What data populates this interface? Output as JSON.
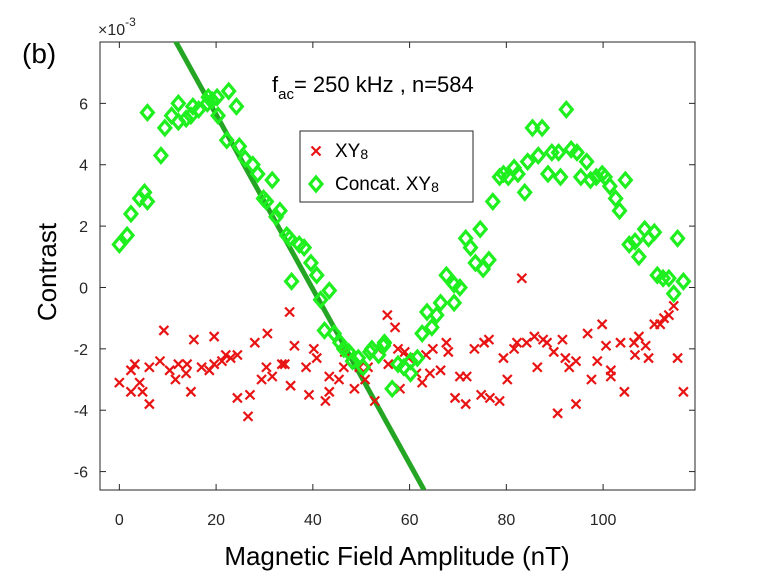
{
  "panel_label": "(b)",
  "chart_data": {
    "type": "scatter",
    "title": "",
    "xlabel": "Magnetic Field Amplitude (nT)",
    "ylabel": "Contrast",
    "y_multiplier": "×10",
    "y_multiplier_exp": "-3",
    "xlim": [
      -4,
      119
    ],
    "ylim": [
      -6.6,
      8.0
    ],
    "xticks": [
      0,
      20,
      40,
      60,
      80,
      100
    ],
    "yticks": [
      -6,
      -4,
      -2,
      0,
      2,
      4,
      6
    ],
    "annotation": {
      "f_base": "f",
      "f_sub": "ac",
      "f_rest": "= 250 kHz , n=584"
    },
    "legend": {
      "position": "top-center",
      "entries": [
        {
          "label": "XY",
          "label_sub": "8",
          "marker": "x",
          "color": "#e81414"
        },
        {
          "label": "Concat. XY",
          "label_sub": "8",
          "marker": "diamond",
          "color": "#1fef1f"
        }
      ]
    },
    "fit_line": {
      "color": "#24a624",
      "x": [
        11,
        63
      ],
      "y": [
        8.2,
        -6.6
      ]
    },
    "series": [
      {
        "name": "XY8",
        "marker": "x",
        "color": "#e81414",
        "x": [
          0,
          1,
          2,
          3,
          4,
          5,
          6,
          7,
          8,
          9,
          10,
          11,
          12,
          13,
          14,
          15,
          16,
          17,
          18,
          19,
          20,
          21,
          22,
          23,
          24,
          25,
          26,
          27,
          28,
          29,
          30,
          31,
          32,
          33,
          34,
          35,
          36,
          37,
          38,
          39,
          40,
          41,
          42,
          43,
          44,
          45,
          46,
          47,
          48,
          49,
          50,
          51,
          52,
          53,
          54,
          55,
          56,
          57,
          58,
          59,
          60,
          61,
          62,
          63,
          64,
          65,
          66,
          67,
          68,
          69,
          70,
          71,
          72,
          73,
          74,
          75,
          76,
          77,
          78,
          79,
          80,
          81,
          82,
          83,
          84,
          85,
          86,
          87,
          88,
          89,
          90,
          91,
          92,
          93,
          94,
          95,
          96,
          97,
          98,
          99,
          100,
          101,
          102,
          103,
          104,
          105,
          106,
          107,
          108,
          109,
          110,
          111,
          112,
          113,
          114,
          115,
          116
        ],
        "values": [
          -3.1,
          -3.4,
          -2.7,
          -2.5,
          -3.1,
          -3.8,
          -3.4,
          -2.6,
          -1.4,
          -2.4,
          -2.7,
          -2.5,
          -3.0,
          -2.8,
          -2.5,
          -1.7,
          -3.4,
          -2.6,
          -2.7,
          -1.6,
          -2.5,
          -2.4,
          -2.2,
          -2.3,
          -3.6,
          -2.2,
          -4.2,
          -3.5,
          -1.8,
          -3.0,
          -1.5,
          -2.6,
          -2.9,
          -2.5,
          -2.5,
          -0.8,
          -3.2,
          -1.9,
          -2.6,
          -3.5,
          -2.0,
          -2.3,
          -3.7,
          -2.9,
          -3.4,
          -3.0,
          -2.1,
          -2.6,
          -3.3,
          -2.6,
          -3.0,
          -2.6,
          -3.7,
          -2.0,
          -0.9,
          -2.5,
          -2.0,
          -1.3,
          -3.3,
          -2.1,
          -2.3,
          -2.8,
          -3.1,
          -2.2,
          -2.8,
          -2.0,
          -2.7,
          -1.8,
          -2.1,
          -3.6,
          -2.9,
          -3.8,
          -2.9,
          -2.0,
          -3.5,
          -1.8,
          -3.6,
          -1.7,
          -3.7,
          -2.3,
          -3.0,
          -2.0,
          -1.8,
          0.3,
          -1.8,
          -1.6,
          -2.6,
          -1.7,
          -1.8,
          -2.1,
          -4.1,
          -1.7,
          -2.3,
          -2.6,
          -3.8,
          -2.4,
          -1.5,
          -3.0,
          -2.4,
          -1.2,
          -1.9,
          -2.9,
          -2.7,
          -1.8,
          -3.4,
          -1.8,
          -2.2,
          -1.6,
          -1.9,
          -2.3,
          -1.2,
          -1.2,
          -1.0,
          -0.9,
          -0.6,
          -2.3,
          -3.4
        ],
        "x_offset": [
          0,
          1.4,
          0.4,
          0.2,
          0.2,
          1.2,
          -1.2,
          -0.8,
          1.2,
          -0.6,
          0.4,
          1.2,
          -0.4,
          0.8,
          0,
          0.4,
          -1.2,
          0,
          0.6,
          0.6,
          -0.4,
          0.2,
          0,
          0,
          0.4,
          -0.6,
          0.6,
          0,
          0,
          0.4,
          0.6,
          -0.6,
          -0.4,
          0.6,
          0.2,
          0.2,
          -0.6,
          -0.8,
          0.6,
          0.2,
          0.2,
          -0.2,
          0.6,
          0.4,
          -0.6,
          0.4,
          0.6,
          -0.6,
          0.6,
          0.6,
          0.8,
          0.4,
          0.8,
          0.4,
          1.4,
          0.6,
          1.6,
          0,
          0,
          0,
          -0.2,
          0.4,
          0.6,
          0.4,
          0.2,
          -0.2,
          0.4,
          0.6,
          0,
          0.4,
          0.4,
          0.6,
          -0.2,
          0.4,
          0.8,
          0.4,
          0.6,
          -0.6,
          0.6,
          0.4,
          0.2,
          0.6,
          0.2,
          0.2,
          0.2,
          0.8,
          0.4,
          0.6,
          0.4,
          0.8,
          0.6,
          0.6,
          0.2,
          0,
          0.4,
          -0.6,
          0.8,
          0.6,
          0.8,
          0.8,
          0.6,
          0.6,
          -0.4,
          0.6,
          0.4,
          1.4,
          0.6,
          0.4,
          0.8,
          0.4,
          0.6,
          0.8,
          0.6,
          0.6,
          0.6,
          0.4,
          0.6
        ]
      },
      {
        "name": "Concat. XY8",
        "marker": "diamond",
        "color": "#1fef1f",
        "x": [
          0,
          1,
          2,
          4,
          5,
          6,
          7,
          8,
          9,
          10,
          11,
          12,
          13,
          14,
          15,
          16,
          17,
          18,
          19,
          20,
          21,
          22,
          23,
          24,
          25,
          26,
          27,
          28,
          29,
          30,
          31,
          32,
          33,
          34,
          35,
          36,
          37,
          38,
          39,
          40,
          41,
          42,
          43,
          44,
          45,
          46,
          47,
          48,
          49,
          50,
          51,
          52,
          53,
          54,
          55,
          56,
          57,
          58,
          59,
          60,
          61,
          62,
          63,
          64,
          65,
          66,
          67,
          68,
          69,
          70,
          71,
          72,
          73,
          74,
          75,
          76,
          77,
          78,
          79,
          80,
          81,
          82,
          83,
          84,
          85,
          86,
          87,
          88,
          89,
          90,
          91,
          92,
          93,
          94,
          95,
          96,
          97,
          98,
          99,
          100,
          101,
          102,
          103,
          104,
          105,
          106,
          107,
          108,
          109,
          110,
          111,
          112,
          113,
          114,
          115,
          116
        ],
        "values": [
          1.4,
          1.7,
          2.4,
          2.9,
          3.1,
          2.8,
          5.7,
          4.3,
          5.2,
          5.6,
          5.4,
          6.0,
          5.5,
          5.6,
          5.9,
          5.8,
          6.0,
          6.2,
          6.1,
          6.2,
          5.6,
          4.8,
          6.4,
          5.9,
          4.6,
          4.2,
          4.0,
          3.7,
          2.9,
          2.8,
          3.5,
          2.3,
          2.5,
          1.7,
          1.6,
          0.2,
          1.4,
          1.3,
          0.8,
          0.4,
          -0.4,
          -1.4,
          -0.1,
          -1.5,
          -1.8,
          -2.0,
          -2.1,
          -2.4,
          -2.3,
          -2.6,
          -2.1,
          -2.0,
          -2.2,
          -1.8,
          -1.9,
          -3.3,
          -2.5,
          -2.6,
          -2.8,
          -2.4,
          -2.3,
          -1.5,
          -0.8,
          -1.3,
          -0.9,
          -0.5,
          0.4,
          -0.5,
          0.1,
          0.0,
          1.6,
          1.3,
          0.8,
          1.9,
          0.6,
          0.9,
          2.8,
          3.6,
          3.7,
          3.6,
          3.9,
          3.7,
          3.1,
          4.1,
          5.2,
          4.3,
          5.2,
          3.7,
          4.4,
          4.4,
          3.6,
          5.8,
          4.5,
          4.4,
          3.6,
          4.1,
          3.5,
          3.6,
          3.7,
          3.6,
          3.3,
          2.9,
          2.5,
          3.5,
          1.4,
          1.5,
          1.0,
          1.9,
          1.6,
          1.8,
          0.4,
          0.3,
          0.3,
          -0.2,
          1.6,
          0.2
        ],
        "x_offset": [
          0,
          0.6,
          0.4,
          0.2,
          0.2,
          -0.2,
          -1.2,
          0.6,
          0.4,
          0.8,
          1.2,
          0.2,
          0.8,
          0.8,
          0.2,
          0.4,
          1.2,
          0.4,
          0.2,
          0.2,
          -0.6,
          0.2,
          -0.4,
          0.2,
          -0.2,
          0,
          0.6,
          0.6,
          0.8,
          0.4,
          0.6,
          0.4,
          0.2,
          0.6,
          0.2,
          -0.4,
          0.2,
          0.2,
          0.6,
          0.8,
          0.6,
          0.4,
          0.4,
          0.4,
          0.6,
          0.4,
          0.4,
          0.2,
          0.4,
          0.4,
          0.8,
          0.2,
          0.6,
          0.8,
          -0.4,
          0.4,
          0.6,
          0.8,
          1.2,
          0.2,
          0.6,
          0.6,
          0.6,
          0.6,
          0.6,
          0.4,
          0.6,
          1.2,
          0.2,
          0.4,
          0.6,
          0.6,
          0.6,
          0.6,
          0.2,
          0.4,
          0.2,
          0.6,
          0.4,
          0.4,
          0.6,
          0.4,
          0.8,
          0.4,
          0.4,
          0.6,
          0.4,
          0.6,
          0.4,
          0.8,
          0.2,
          0.4,
          0.4,
          0.6,
          0.4,
          0.6,
          0.4,
          0.6,
          0.8,
          0.4,
          0.4,
          0.6,
          0.4,
          0.6,
          0.4,
          0.6,
          0.4,
          0.6,
          0.4,
          0.6,
          0.2,
          0.4,
          0.6,
          0.6,
          0.4,
          0.6
        ]
      }
    ]
  }
}
